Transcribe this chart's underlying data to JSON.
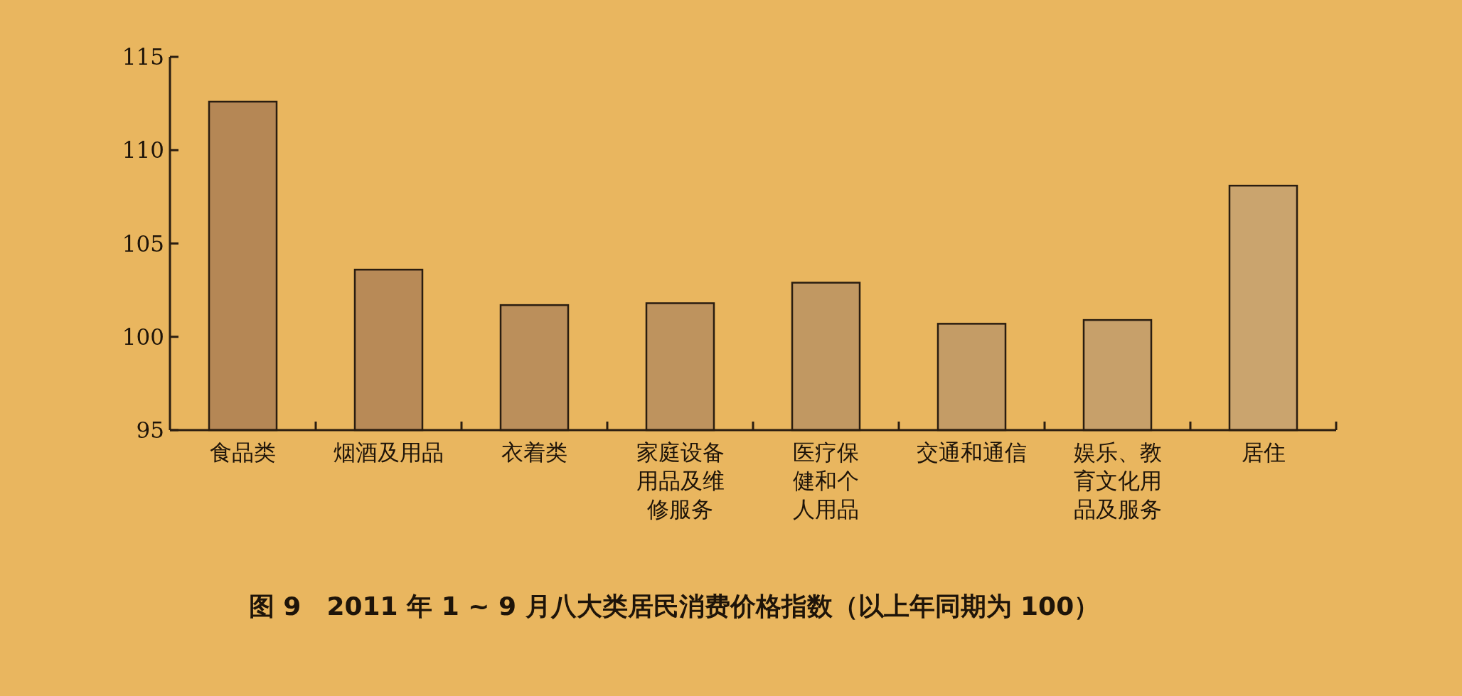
{
  "chart_data": {
    "type": "bar",
    "title": "图 9　2011 年 1 ~ 9 月八大类居民消费价格指数（以上年同期为 100）",
    "categories": [
      "食品类",
      "烟酒及用品",
      "衣着类",
      "家庭设备用品及维修服务",
      "医疗保健和个人用品",
      "交通和通信",
      "娱乐、教育文化用品及服务",
      "居住"
    ],
    "values": [
      112.6,
      103.6,
      101.7,
      101.8,
      102.9,
      100.7,
      100.9,
      108.1
    ],
    "colors": [
      "#b58755",
      "#b88a57",
      "#bb8f5b",
      "#be935e",
      "#c19862",
      "#c49c66",
      "#c7a06a",
      "#caa46e"
    ],
    "ylim": [
      95,
      115
    ],
    "yticks": [
      95,
      100,
      105,
      110,
      115
    ],
    "grid": false
  }
}
